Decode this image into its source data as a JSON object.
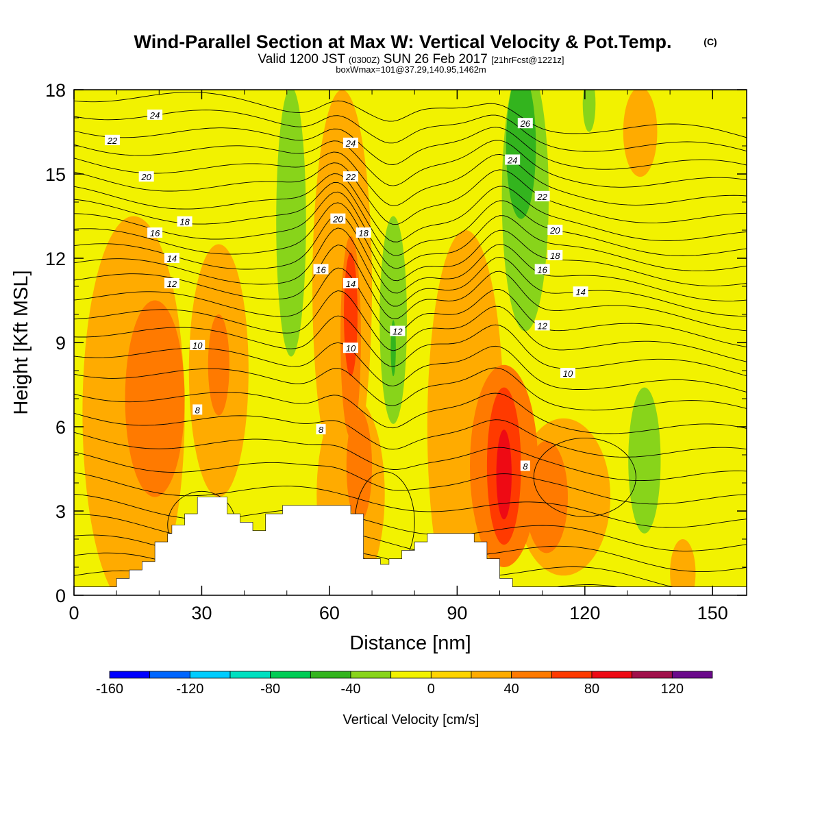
{
  "header": {
    "title": "Wind-Parallel Section at Max W: Vertical Velocity & Pot.Temp.",
    "title_mark": "(C)",
    "valid_prefix": "Valid 1200 JST",
    "valid_utc": "(0300Z)",
    "valid_day": "SUN 26 Feb 2017",
    "forecast": "[21hrFcst@1221z]",
    "box_info": "boxWmax=101@37.29,140.95,1462m"
  },
  "chart_data": {
    "type": "heatmap",
    "xlabel": "Distance [nm]",
    "ylabel": "Height [Kft MSL]",
    "xlim": [
      0,
      158
    ],
    "ylim": [
      0,
      18
    ],
    "x_ticks": [
      0,
      30,
      60,
      90,
      120,
      150
    ],
    "y_ticks": [
      0,
      3,
      6,
      9,
      12,
      15,
      18
    ],
    "colorbar": {
      "label": "Vertical Velocity [cm/s]",
      "levels": [
        -160,
        -140,
        -120,
        -100,
        -80,
        -60,
        -40,
        -20,
        0,
        20,
        40,
        60,
        80,
        100,
        120,
        140
      ],
      "labels": [
        "-160",
        "-120",
        "-80",
        "-40",
        "0",
        "40",
        "80",
        "120"
      ],
      "colors": [
        "#0000ff",
        "#0066ff",
        "#00ccff",
        "#00e0c0",
        "#00cc55",
        "#33b41e",
        "#88d41a",
        "#f2f200",
        "#ffd400",
        "#ffab00",
        "#ff7a00",
        "#ff3a00",
        "#ee0a14",
        "#a0104a",
        "#6a0a8a"
      ]
    },
    "background_color": "#f2f200",
    "terrain": [
      [
        0,
        0.3
      ],
      [
        10,
        0.3
      ],
      [
        10,
        0.6
      ],
      [
        13,
        0.6
      ],
      [
        13,
        0.9
      ],
      [
        16,
        0.9
      ],
      [
        16,
        1.2
      ],
      [
        19,
        1.2
      ],
      [
        19,
        1.9
      ],
      [
        22,
        1.9
      ],
      [
        22,
        2.2
      ],
      [
        23,
        2.2
      ],
      [
        23,
        2.5
      ],
      [
        26,
        2.5
      ],
      [
        26,
        2.9
      ],
      [
        29,
        2.9
      ],
      [
        29,
        3.5
      ],
      [
        36,
        3.5
      ],
      [
        36,
        2.9
      ],
      [
        39,
        2.9
      ],
      [
        39,
        2.6
      ],
      [
        42,
        2.6
      ],
      [
        42,
        2.3
      ],
      [
        45,
        2.3
      ],
      [
        45,
        2.9
      ],
      [
        49,
        2.9
      ],
      [
        49,
        3.2
      ],
      [
        65,
        3.2
      ],
      [
        65,
        2.9
      ],
      [
        68,
        2.9
      ],
      [
        68,
        1.3
      ],
      [
        72,
        1.3
      ],
      [
        72,
        1.1
      ],
      [
        74,
        1.1
      ],
      [
        74,
        1.3
      ],
      [
        77,
        1.3
      ],
      [
        77,
        1.6
      ],
      [
        80,
        1.6
      ],
      [
        80,
        1.9
      ],
      [
        83,
        1.9
      ],
      [
        83,
        2.2
      ],
      [
        94,
        2.2
      ],
      [
        94,
        1.9
      ],
      [
        97,
        1.9
      ],
      [
        97,
        1.3
      ],
      [
        100,
        1.3
      ],
      [
        100,
        0.6
      ],
      [
        103,
        0.6
      ],
      [
        103,
        0.3
      ],
      [
        158,
        0.3
      ],
      [
        158,
        0
      ],
      [
        0,
        0
      ]
    ],
    "vertical_velocity_features": [
      {
        "level": 20,
        "x": 14,
        "y": 6.5,
        "rx": 12,
        "ry": 7
      },
      {
        "level": 20,
        "x": 34,
        "y": 8,
        "rx": 7,
        "ry": 4.5
      },
      {
        "level": 20,
        "x": 63,
        "y": 11,
        "rx": 7,
        "ry": 7
      },
      {
        "level": 20,
        "x": 65,
        "y": 3.6,
        "rx": 8,
        "ry": 3.5
      },
      {
        "level": 20,
        "x": 92,
        "y": 6,
        "rx": 9,
        "ry": 7
      },
      {
        "level": 20,
        "x": 115,
        "y": 3.5,
        "rx": 11,
        "ry": 2.8
      },
      {
        "level": 20,
        "x": 133,
        "y": 16.5,
        "rx": 4,
        "ry": 1.6
      },
      {
        "level": 20,
        "x": 143,
        "y": 0.8,
        "rx": 3,
        "ry": 1.2
      },
      {
        "level": 40,
        "x": 19,
        "y": 7,
        "rx": 7,
        "ry": 3.5
      },
      {
        "level": 40,
        "x": 34,
        "y": 8.2,
        "rx": 2.5,
        "ry": 1.8
      },
      {
        "level": 40,
        "x": 65,
        "y": 9.2,
        "rx": 2.4,
        "ry": 3.6
      },
      {
        "level": 40,
        "x": 67,
        "y": 4.6,
        "rx": 3,
        "ry": 2
      },
      {
        "level": 40,
        "x": 101,
        "y": 4.6,
        "rx": 8,
        "ry": 3.6
      },
      {
        "level": 40,
        "x": 111,
        "y": 3.5,
        "rx": 5,
        "ry": 2
      },
      {
        "level": 60,
        "x": 65,
        "y": 10,
        "rx": 1.6,
        "ry": 2.2
      },
      {
        "level": 60,
        "x": 101,
        "y": 4.6,
        "rx": 4,
        "ry": 2.8
      },
      {
        "level": 80,
        "x": 101,
        "y": 4.3,
        "rx": 1.8,
        "ry": 1.6
      },
      {
        "level": -20,
        "x": 51,
        "y": 13.3,
        "rx": 3.5,
        "ry": 4.8
      },
      {
        "level": -20,
        "x": 75,
        "y": 9.8,
        "rx": 3.2,
        "ry": 3.7
      },
      {
        "level": -20,
        "x": 106,
        "y": 14.2,
        "rx": 5.5,
        "ry": 4.8
      },
      {
        "level": -20,
        "x": 121,
        "y": 17.5,
        "rx": 1.5,
        "ry": 1
      },
      {
        "level": -20,
        "x": 134,
        "y": 4.8,
        "rx": 3.8,
        "ry": 2.6
      },
      {
        "level": -40,
        "x": 105,
        "y": 16,
        "rx": 3.5,
        "ry": 2.6
      },
      {
        "level": -40,
        "x": 75,
        "y": 8.8,
        "rx": 0.6,
        "ry": 1
      }
    ],
    "theta_labels": [
      {
        "value": "24",
        "x": 19,
        "y": 17.1
      },
      {
        "value": "22",
        "x": 9,
        "y": 16.2
      },
      {
        "value": "20",
        "x": 17,
        "y": 14.9
      },
      {
        "value": "18",
        "x": 26,
        "y": 13.3
      },
      {
        "value": "16",
        "x": 19,
        "y": 12.9
      },
      {
        "value": "14",
        "x": 23,
        "y": 12
      },
      {
        "value": "12",
        "x": 23,
        "y": 11.1
      },
      {
        "value": "10",
        "x": 29,
        "y": 8.9
      },
      {
        "value": "8",
        "x": 29,
        "y": 6.6
      },
      {
        "value": "24",
        "x": 65,
        "y": 16.1
      },
      {
        "value": "22",
        "x": 65,
        "y": 14.9
      },
      {
        "value": "20",
        "x": 62,
        "y": 13.4
      },
      {
        "value": "18",
        "x": 68,
        "y": 12.9
      },
      {
        "value": "16",
        "x": 58,
        "y": 11.6
      },
      {
        "value": "14",
        "x": 65,
        "y": 11.1
      },
      {
        "value": "10",
        "x": 65,
        "y": 8.8
      },
      {
        "value": "8",
        "x": 58,
        "y": 5.9
      },
      {
        "value": "26",
        "x": 106,
        "y": 16.8
      },
      {
        "value": "24",
        "x": 103,
        "y": 15.5
      },
      {
        "value": "22",
        "x": 110,
        "y": 14.2
      },
      {
        "value": "20",
        "x": 113,
        "y": 13
      },
      {
        "value": "18",
        "x": 113,
        "y": 12.1
      },
      {
        "value": "16",
        "x": 110,
        "y": 11.6
      },
      {
        "value": "14",
        "x": 119,
        "y": 10.8
      },
      {
        "value": "12",
        "x": 110,
        "y": 9.6
      },
      {
        "value": "12",
        "x": 76,
        "y": 9.4
      },
      {
        "value": "10",
        "x": 116,
        "y": 7.9
      },
      {
        "value": "8",
        "x": 106,
        "y": 4.6
      }
    ],
    "theta_contours": [
      {
        "base": 0.7,
        "ridge": 0
      },
      {
        "base": 1.3,
        "ridge": 0
      },
      {
        "base": 1.9,
        "ridge": 0
      },
      {
        "base": 2.6,
        "ridge": 0
      },
      {
        "base": 3.3,
        "ridge": 0
      },
      {
        "base": 4.1,
        "ridge": 0
      },
      {
        "base": 4.9,
        "ridge": 0.2
      },
      {
        "base": 5.7,
        "ridge": 0.3
      },
      {
        "base": 6.5,
        "ridge": 0.5
      },
      {
        "base": 7.3,
        "ridge": 0.7
      },
      {
        "base": 8.1,
        "ridge": 0.9
      },
      {
        "base": 8.8,
        "ridge": 1.1
      },
      {
        "base": 9.5,
        "ridge": 1.3
      },
      {
        "base": 10.1,
        "ridge": 1.5
      },
      {
        "base": 10.7,
        "ridge": 1.6
      },
      {
        "base": 11.3,
        "ridge": 1.7
      },
      {
        "base": 11.8,
        "ridge": 1.7
      },
      {
        "base": 12.3,
        "ridge": 1.6
      },
      {
        "base": 12.8,
        "ridge": 1.5
      },
      {
        "base": 13.3,
        "ridge": 1.4
      },
      {
        "base": 13.8,
        "ridge": 1.3
      },
      {
        "base": 14.3,
        "ridge": 1.2
      },
      {
        "base": 14.9,
        "ridge": 1.1
      },
      {
        "base": 15.5,
        "ridge": 1.0
      },
      {
        "base": 16.1,
        "ridge": 0.9
      },
      {
        "base": 16.7,
        "ridge": 0.8
      },
      {
        "base": 17.3,
        "ridge": 0.7
      },
      {
        "base": 17.9,
        "ridge": 0.6
      }
    ]
  }
}
